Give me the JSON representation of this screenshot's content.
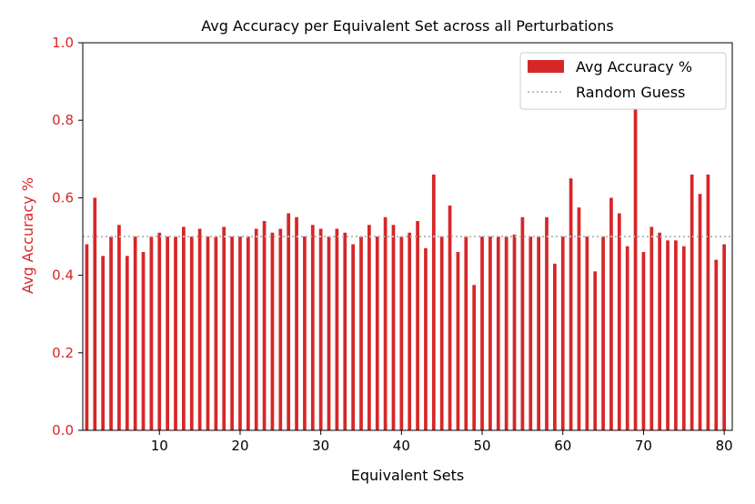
{
  "chart_data": {
    "type": "bar",
    "title": "Avg Accuracy per Equivalent Set across all Perturbations",
    "xlabel": "Equivalent Sets",
    "ylabel": "Avg Accuracy %",
    "xlim": [
      0.5,
      81.0
    ],
    "ylim": [
      0.0,
      1.0
    ],
    "xticks": [
      "10",
      "20",
      "30",
      "40",
      "50",
      "60",
      "70",
      "80"
    ],
    "yticks": [
      "0.0",
      "0.2",
      "0.4",
      "0.6",
      "0.8",
      "1.0"
    ],
    "x": [
      1,
      2,
      3,
      4,
      5,
      6,
      7,
      8,
      9,
      10,
      11,
      12,
      13,
      14,
      15,
      16,
      17,
      18,
      19,
      20,
      21,
      22,
      23,
      24,
      25,
      26,
      27,
      28,
      29,
      30,
      31,
      32,
      33,
      34,
      35,
      36,
      37,
      38,
      39,
      40,
      41,
      42,
      43,
      44,
      45,
      46,
      47,
      48,
      49,
      50,
      51,
      52,
      53,
      54,
      55,
      56,
      57,
      58,
      59,
      60,
      61,
      62,
      63,
      64,
      65,
      66,
      67,
      68,
      69,
      70,
      71,
      72,
      73,
      74,
      75,
      76,
      77,
      78,
      79,
      80
    ],
    "series": [
      {
        "name": "Avg Accuracy %",
        "values": [
          0.48,
          0.6,
          0.45,
          0.5,
          0.53,
          0.45,
          0.5,
          0.46,
          0.5,
          0.51,
          0.5,
          0.5,
          0.525,
          0.5,
          0.52,
          0.5,
          0.5,
          0.525,
          0.5,
          0.5,
          0.5,
          0.52,
          0.54,
          0.51,
          0.52,
          0.56,
          0.55,
          0.5,
          0.53,
          0.52,
          0.5,
          0.52,
          0.51,
          0.48,
          0.5,
          0.53,
          0.5,
          0.55,
          0.53,
          0.5,
          0.51,
          0.54,
          0.47,
          0.66,
          0.5,
          0.58,
          0.46,
          0.5,
          0.375,
          0.5,
          0.5,
          0.5,
          0.5,
          0.505,
          0.55,
          0.5,
          0.5,
          0.55,
          0.43,
          0.5,
          0.65,
          0.575,
          0.5,
          0.41,
          0.5,
          0.6,
          0.56,
          0.475,
          0.88,
          0.46,
          0.525,
          0.51,
          0.49,
          0.49,
          0.475,
          0.66,
          0.61,
          0.66,
          0.44,
          0.48
        ],
        "color": "#d62728"
      }
    ],
    "reference_line": {
      "name": "Random Guess",
      "y": 0.5,
      "style": "dotted",
      "color": "#bbbbbb"
    },
    "axis_color_left": "#d62728",
    "legend_position": "top-right",
    "grid": false
  }
}
